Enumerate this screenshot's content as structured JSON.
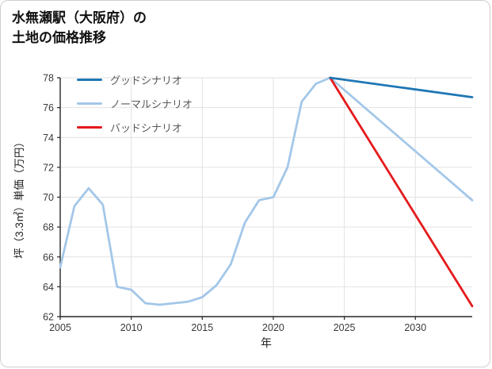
{
  "title": {
    "line1": "水無瀬駅（大阪府）の",
    "line2": "土地の価格推移"
  },
  "chart_data": {
    "type": "line",
    "title": "水無瀬駅（大阪府）の土地の価格推移",
    "xlabel": "年",
    "ylabel": "坪（3.3㎡）単価（万円）",
    "xlim": [
      2005,
      2034
    ],
    "ylim": [
      62,
      78
    ],
    "xticks": [
      2005,
      2010,
      2015,
      2020,
      2025,
      2030
    ],
    "yticks": [
      62,
      64,
      66,
      68,
      70,
      72,
      74,
      76,
      78
    ],
    "grid": true,
    "legend_position": "upper-left-inside",
    "series": [
      {
        "name": "グッドシナリオ",
        "color": "#1f77b4",
        "x": [
          2024,
          2034
        ],
        "y": [
          78,
          76.7
        ]
      },
      {
        "name": "ノーマルシナリオ",
        "color": "#a3c7e8",
        "x": [
          2005,
          2006,
          2007,
          2008,
          2009,
          2010,
          2011,
          2012,
          2013,
          2014,
          2015,
          2016,
          2017,
          2018,
          2019,
          2020,
          2021,
          2022,
          2023,
          2024,
          2034
        ],
        "y": [
          65.3,
          69.4,
          70.6,
          69.5,
          64.0,
          63.8,
          62.9,
          62.8,
          62.9,
          63.0,
          63.3,
          64.1,
          65.5,
          68.3,
          69.8,
          70.0,
          72.0,
          76.4,
          77.6,
          78.0,
          69.8
        ]
      },
      {
        "name": "バッドシナリオ",
        "color": "#e41a1c",
        "x": [
          2024,
          2034
        ],
        "y": [
          78,
          62.7
        ]
      }
    ],
    "colors": {
      "grid": "#e2e2e2",
      "spine": "#262626",
      "tick_label": "#3a3a3a"
    }
  }
}
